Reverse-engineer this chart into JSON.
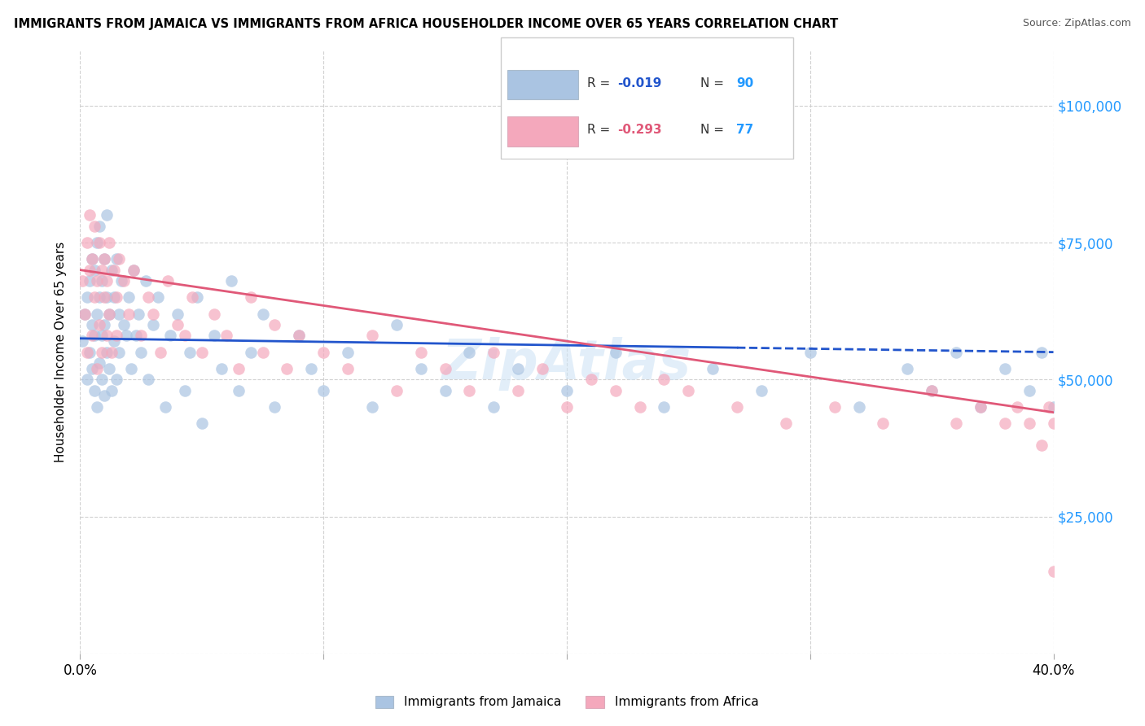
{
  "title": "IMMIGRANTS FROM JAMAICA VS IMMIGRANTS FROM AFRICA HOUSEHOLDER INCOME OVER 65 YEARS CORRELATION CHART",
  "source": "Source: ZipAtlas.com",
  "ylabel": "Householder Income Over 65 years",
  "xlim": [
    0.0,
    0.4
  ],
  "ylim": [
    0,
    110000
  ],
  "yticks": [
    0,
    25000,
    50000,
    75000,
    100000
  ],
  "xticks": [
    0.0,
    0.1,
    0.2,
    0.3,
    0.4
  ],
  "xtick_labels": [
    "0.0%",
    "",
    "",
    "",
    "40.0%"
  ],
  "ytick_labels_right": [
    "",
    "$25,000",
    "$50,000",
    "$75,000",
    "$100,000"
  ],
  "jamaica_R": -0.019,
  "jamaica_N": 90,
  "africa_R": -0.293,
  "africa_N": 77,
  "jamaica_color": "#aac4e2",
  "africa_color": "#f4a8bc",
  "jamaica_line_color": "#2255cc",
  "africa_line_color": "#e05878",
  "right_label_color": "#2299ff",
  "background_color": "#ffffff",
  "watermark": "ZipAtlas",
  "jamaica_line_y0": 57500,
  "jamaica_line_y1": 55000,
  "africa_line_y0": 70000,
  "africa_line_y1": 44000,
  "legend_jamaica_text_r": "-0.019",
  "legend_jamaica_n": "90",
  "legend_africa_text_r": "-0.293",
  "legend_africa_n": "77",
  "legend_r_color": "#2255cc",
  "legend_n_color": "#2299ff",
  "scatter_jamaica_x": [
    0.001,
    0.002,
    0.003,
    0.003,
    0.004,
    0.004,
    0.005,
    0.005,
    0.005,
    0.006,
    0.006,
    0.006,
    0.007,
    0.007,
    0.007,
    0.008,
    0.008,
    0.008,
    0.009,
    0.009,
    0.009,
    0.01,
    0.01,
    0.01,
    0.011,
    0.011,
    0.011,
    0.012,
    0.012,
    0.013,
    0.013,
    0.014,
    0.014,
    0.015,
    0.015,
    0.016,
    0.016,
    0.017,
    0.018,
    0.019,
    0.02,
    0.021,
    0.022,
    0.023,
    0.024,
    0.025,
    0.027,
    0.028,
    0.03,
    0.032,
    0.035,
    0.037,
    0.04,
    0.043,
    0.045,
    0.048,
    0.05,
    0.055,
    0.058,
    0.062,
    0.065,
    0.07,
    0.075,
    0.08,
    0.09,
    0.095,
    0.1,
    0.11,
    0.12,
    0.13,
    0.14,
    0.15,
    0.16,
    0.17,
    0.18,
    0.2,
    0.22,
    0.24,
    0.26,
    0.28,
    0.3,
    0.32,
    0.34,
    0.35,
    0.36,
    0.37,
    0.38,
    0.39,
    0.395,
    0.4
  ],
  "scatter_jamaica_y": [
    57000,
    62000,
    50000,
    65000,
    55000,
    68000,
    52000,
    60000,
    72000,
    48000,
    58000,
    70000,
    45000,
    62000,
    75000,
    53000,
    65000,
    78000,
    50000,
    58000,
    68000,
    47000,
    60000,
    72000,
    55000,
    65000,
    80000,
    52000,
    62000,
    48000,
    70000,
    57000,
    65000,
    50000,
    72000,
    55000,
    62000,
    68000,
    60000,
    58000,
    65000,
    52000,
    70000,
    58000,
    62000,
    55000,
    68000,
    50000,
    60000,
    65000,
    45000,
    58000,
    62000,
    48000,
    55000,
    65000,
    42000,
    58000,
    52000,
    68000,
    48000,
    55000,
    62000,
    45000,
    58000,
    52000,
    48000,
    55000,
    45000,
    60000,
    52000,
    48000,
    55000,
    45000,
    52000,
    48000,
    55000,
    45000,
    52000,
    48000,
    55000,
    45000,
    52000,
    48000,
    55000,
    45000,
    52000,
    48000,
    55000,
    45000
  ],
  "scatter_africa_x": [
    0.001,
    0.002,
    0.003,
    0.003,
    0.004,
    0.004,
    0.005,
    0.005,
    0.006,
    0.006,
    0.007,
    0.007,
    0.008,
    0.008,
    0.009,
    0.009,
    0.01,
    0.01,
    0.011,
    0.011,
    0.012,
    0.012,
    0.013,
    0.014,
    0.015,
    0.015,
    0.016,
    0.018,
    0.02,
    0.022,
    0.025,
    0.028,
    0.03,
    0.033,
    0.036,
    0.04,
    0.043,
    0.046,
    0.05,
    0.055,
    0.06,
    0.065,
    0.07,
    0.075,
    0.08,
    0.085,
    0.09,
    0.1,
    0.11,
    0.12,
    0.13,
    0.14,
    0.15,
    0.16,
    0.17,
    0.18,
    0.19,
    0.2,
    0.21,
    0.22,
    0.23,
    0.24,
    0.25,
    0.27,
    0.29,
    0.31,
    0.33,
    0.35,
    0.36,
    0.37,
    0.38,
    0.385,
    0.39,
    0.395,
    0.398,
    0.4,
    0.4
  ],
  "scatter_africa_y": [
    68000,
    62000,
    75000,
    55000,
    70000,
    80000,
    58000,
    72000,
    65000,
    78000,
    52000,
    68000,
    60000,
    75000,
    55000,
    70000,
    65000,
    72000,
    58000,
    68000,
    62000,
    75000,
    55000,
    70000,
    65000,
    58000,
    72000,
    68000,
    62000,
    70000,
    58000,
    65000,
    62000,
    55000,
    68000,
    60000,
    58000,
    65000,
    55000,
    62000,
    58000,
    52000,
    65000,
    55000,
    60000,
    52000,
    58000,
    55000,
    52000,
    58000,
    48000,
    55000,
    52000,
    48000,
    55000,
    48000,
    52000,
    45000,
    50000,
    48000,
    45000,
    50000,
    48000,
    45000,
    42000,
    45000,
    42000,
    48000,
    42000,
    45000,
    42000,
    45000,
    42000,
    38000,
    45000,
    42000,
    15000
  ]
}
